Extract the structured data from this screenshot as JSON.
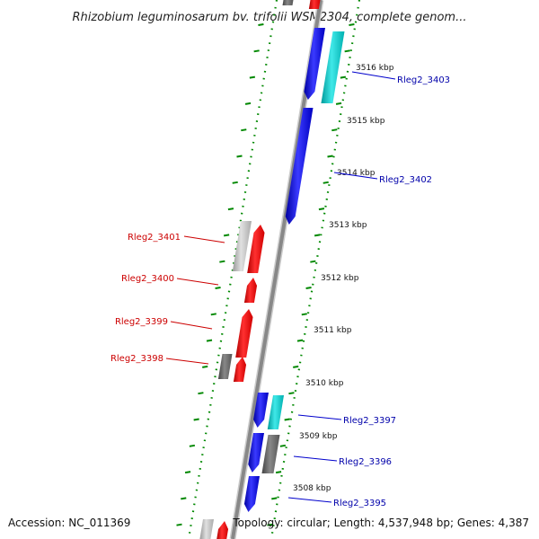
{
  "header": {
    "title": "Rhizobium leguminosarum bv. trifolii WSM2304, complete genom..."
  },
  "footer": {
    "accession": "Accession: NC_011369",
    "summary": "Topology: circular; Length: 4,537,948 bp; Genes: 4,387"
  },
  "kbp_markers": [
    "3516 kbp",
    "3515 kbp",
    "3514 kbp",
    "3513 kbp",
    "3512 kbp",
    "3511 kbp",
    "3510 kbp",
    "3509 kbp",
    "3508 kbp"
  ],
  "gene_labels": [
    {
      "name": "Rleg2_3403",
      "color": "#0000aa",
      "strand": "forward"
    },
    {
      "name": "Rleg2_3402",
      "color": "#0000aa",
      "strand": "forward"
    },
    {
      "name": "Rleg2_3401",
      "color": "#cc0000",
      "strand": "reverse"
    },
    {
      "name": "Rleg2_3400",
      "color": "#cc0000",
      "strand": "reverse"
    },
    {
      "name": "Rleg2_3399",
      "color": "#cc0000",
      "strand": "reverse"
    },
    {
      "name": "Rleg2_3398",
      "color": "#cc0000",
      "strand": "reverse"
    },
    {
      "name": "Rleg2_3397",
      "color": "#0000aa",
      "strand": "forward"
    },
    {
      "name": "Rleg2_3396",
      "color": "#0000aa",
      "strand": "forward"
    },
    {
      "name": "Rleg2_3395",
      "color": "#0000aa",
      "strand": "forward"
    }
  ],
  "colors": {
    "forward_cds": "#0000ee",
    "reverse_cds": "#ee0000",
    "rna_gene": "#00c8c8",
    "other_gene": "#777777",
    "pseudo_gene": "#bbbbbb",
    "backbone": "#888888",
    "tick": "#008800"
  }
}
